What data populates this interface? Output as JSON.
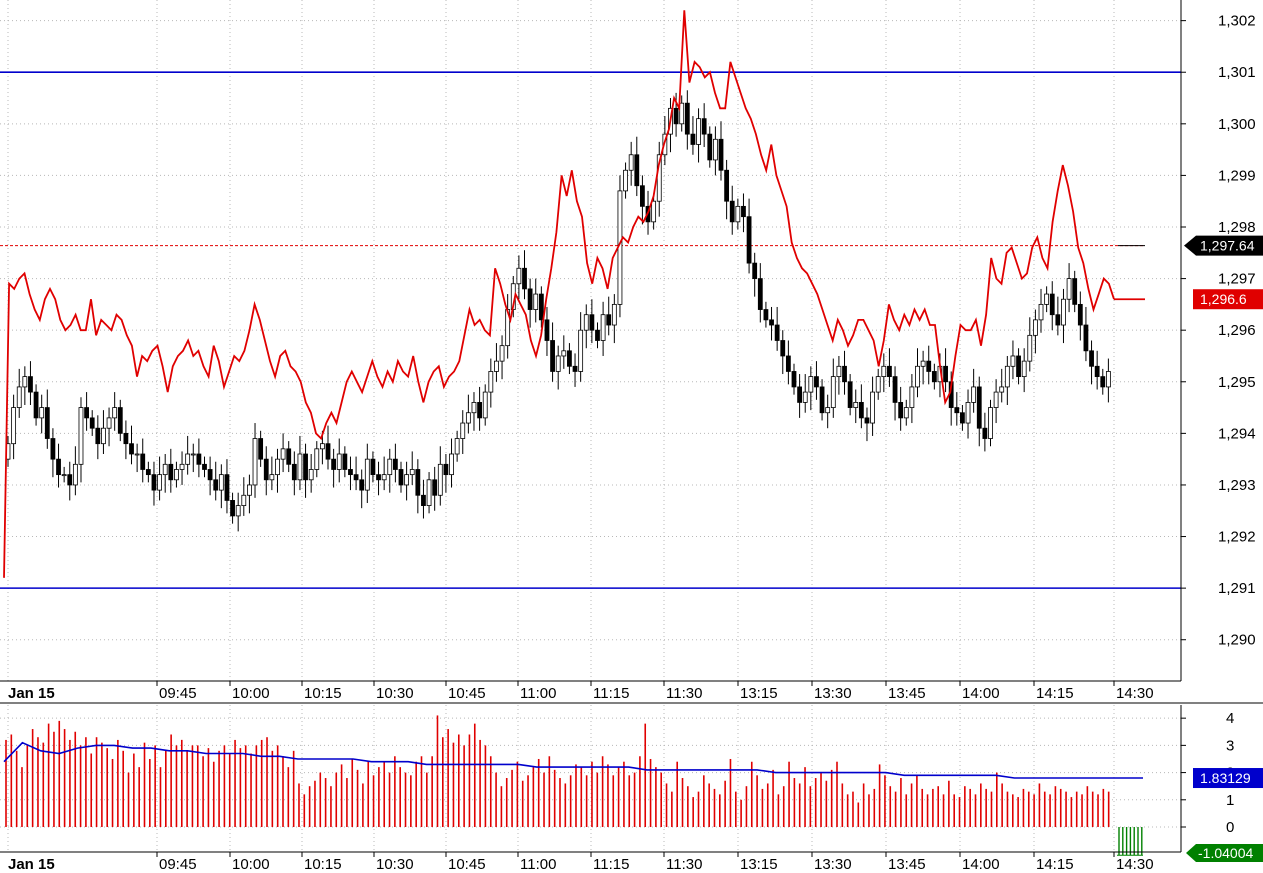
{
  "chart_data": [
    {
      "type": "candlestick",
      "panel": "price",
      "date_label": "Jan 15",
      "time_labels": [
        "09:45",
        "10:00",
        "10:15",
        "10:30",
        "10:45",
        "11:00",
        "11:15",
        "11:30",
        "13:15",
        "13:30",
        "13:45",
        "14:00",
        "14:15",
        "14:30"
      ],
      "y_ticks": [
        "1,290",
        "1,291",
        "1,292",
        "1,293",
        "1,294",
        "1,295",
        "1,296",
        "1,297",
        "1,298",
        "1,299",
        "1,300",
        "1,301",
        "1,302"
      ],
      "ylim": [
        1289.2,
        1302.4
      ],
      "last_price": 1297.64,
      "last_price_label": "1,297.64",
      "series": [
        {
          "name": "",
          "kind": "line",
          "color": "#e00000",
          "last_label": "1,296.6",
          "values": [
            1291.2,
            1296.9,
            1296.8,
            1297.0,
            1297.1,
            1296.7,
            1296.4,
            1296.2,
            1296.6,
            1296.8,
            1296.6,
            1296.2,
            1296.0,
            1296.1,
            1296.3,
            1296.0,
            1296.0,
            1296.6,
            1295.9,
            1296.2,
            1296.1,
            1296.0,
            1296.3,
            1296.2,
            1295.9,
            1295.7,
            1295.1,
            1295.5,
            1295.4,
            1295.6,
            1295.7,
            1295.3,
            1294.8,
            1295.3,
            1295.5,
            1295.6,
            1295.8,
            1295.5,
            1295.6,
            1295.3,
            1295.1,
            1295.7,
            1295.4,
            1294.9,
            1295.2,
            1295.5,
            1295.4,
            1295.6,
            1296.0,
            1296.5,
            1296.2,
            1295.8,
            1295.4,
            1295.1,
            1295.5,
            1295.6,
            1295.3,
            1295.2,
            1295.0,
            1294.6,
            1294.4,
            1294.0,
            1293.9,
            1294.2,
            1294.4,
            1294.2,
            1294.6,
            1295.0,
            1295.2,
            1295.0,
            1294.8,
            1295.1,
            1295.4,
            1295.1,
            1294.9,
            1295.2,
            1295.0,
            1295.4,
            1295.2,
            1295.1,
            1295.5,
            1295.0,
            1294.6,
            1295.0,
            1295.2,
            1295.3,
            1294.9,
            1295.1,
            1295.2,
            1295.4,
            1295.9,
            1296.4,
            1296.1,
            1296.2,
            1296.0,
            1295.9,
            1297.2,
            1296.9,
            1296.5,
            1296.2,
            1296.7,
            1296.5,
            1296.3,
            1295.8,
            1295.5,
            1295.9,
            1296.6,
            1297.2,
            1297.9,
            1299.0,
            1298.6,
            1299.1,
            1298.5,
            1298.2,
            1297.3,
            1296.9,
            1297.4,
            1297.2,
            1296.8,
            1297.4,
            1297.6,
            1297.8,
            1297.7,
            1298.0,
            1298.2,
            1298.1,
            1298.3,
            1298.6,
            1299.2,
            1299.6,
            1299.9,
            1300.5,
            1300.3,
            1302.2,
            1300.8,
            1301.2,
            1301.1,
            1300.9,
            1301.0,
            1300.6,
            1300.3,
            1300.3,
            1301.2,
            1300.9,
            1300.6,
            1300.3,
            1300.1,
            1299.8,
            1299.4,
            1299.1,
            1299.6,
            1299.0,
            1298.7,
            1298.4,
            1297.7,
            1297.4,
            1297.2,
            1297.1,
            1296.9,
            1296.7,
            1296.4,
            1296.1,
            1295.8,
            1296.2,
            1296.0,
            1295.7,
            1295.9,
            1296.2,
            1296.2,
            1296.0,
            1295.8,
            1295.3,
            1295.8,
            1296.5,
            1296.2,
            1296.0,
            1296.3,
            1296.1,
            1296.4,
            1296.2,
            1296.4,
            1296.1,
            1296.1,
            1295.3,
            1294.6,
            1294.8,
            1295.5,
            1296.1,
            1296.0,
            1296.0,
            1296.2,
            1295.7,
            1296.3,
            1297.4,
            1297.0,
            1296.9,
            1297.5,
            1297.6,
            1297.3,
            1297.0,
            1297.1,
            1297.6,
            1297.8,
            1297.4,
            1297.2,
            1298.1,
            1298.7,
            1299.2,
            1298.8,
            1298.3,
            1297.6,
            1297.3,
            1296.8,
            1296.4,
            1296.7,
            1297.0,
            1296.9,
            1296.6
          ]
        },
        {
          "name": "",
          "kind": "ohlc",
          "color": "#000000",
          "close": [
            1293.8,
            1294.5,
            1294.9,
            1295.1,
            1294.8,
            1294.3,
            1294.5,
            1293.9,
            1293.5,
            1293.2,
            1293.2,
            1293.0,
            1293.4,
            1294.5,
            1294.3,
            1294.1,
            1293.8,
            1294.1,
            1294.3,
            1294.5,
            1294.0,
            1293.8,
            1293.6,
            1293.6,
            1293.3,
            1293.2,
            1292.9,
            1293.2,
            1293.4,
            1293.1,
            1293.3,
            1293.4,
            1293.6,
            1293.6,
            1293.4,
            1293.3,
            1293.1,
            1292.9,
            1293.2,
            1292.7,
            1292.4,
            1292.6,
            1292.8,
            1293.0,
            1293.9,
            1293.5,
            1293.1,
            1293.2,
            1293.5,
            1293.7,
            1293.4,
            1293.1,
            1293.6,
            1293.1,
            1293.3,
            1293.7,
            1293.8,
            1293.5,
            1293.3,
            1293.6,
            1293.3,
            1293.2,
            1293.1,
            1292.9,
            1293.5,
            1293.2,
            1293.1,
            1293.2,
            1293.5,
            1293.3,
            1293.0,
            1293.2,
            1293.3,
            1292.8,
            1292.6,
            1293.1,
            1292.8,
            1293.4,
            1293.2,
            1293.6,
            1293.9,
            1294.2,
            1294.4,
            1294.6,
            1294.3,
            1294.8,
            1295.2,
            1295.4,
            1295.7,
            1296.4,
            1296.9,
            1297.2,
            1296.8,
            1296.4,
            1296.7,
            1296.2,
            1295.8,
            1295.2,
            1295.5,
            1295.6,
            1295.3,
            1295.2,
            1296.0,
            1296.3,
            1296.0,
            1295.8,
            1296.3,
            1296.1,
            1296.5,
            1298.7,
            1299.1,
            1299.4,
            1298.8,
            1298.4,
            1298.1,
            1298.5,
            1299.4,
            1299.8,
            1300.3,
            1300.0,
            1300.4,
            1299.8,
            1299.6,
            1300.1,
            1299.8,
            1299.3,
            1299.7,
            1299.1,
            1298.5,
            1298.1,
            1298.4,
            1298.2,
            1297.3,
            1297.0,
            1296.4,
            1296.2,
            1296.1,
            1295.8,
            1295.5,
            1295.2,
            1294.9,
            1294.6,
            1294.8,
            1295.1,
            1294.9,
            1294.4,
            1294.5,
            1295.1,
            1295.3,
            1295.0,
            1294.5,
            1294.6,
            1294.3,
            1294.2,
            1294.8,
            1295.1,
            1295.3,
            1295.1,
            1294.6,
            1294.3,
            1294.5,
            1294.9,
            1295.3,
            1295.4,
            1295.2,
            1295.0,
            1295.3,
            1295.0,
            1294.5,
            1294.4,
            1294.2,
            1294.6,
            1294.9,
            1294.1,
            1293.9,
            1294.5,
            1294.8,
            1294.9,
            1295.3,
            1295.5,
            1295.1,
            1295.4,
            1295.9,
            1296.2,
            1296.5,
            1296.7,
            1296.3,
            1296.1,
            1296.6,
            1297.0,
            1296.5,
            1296.1,
            1295.6,
            1295.3,
            1295.1,
            1294.9,
            1295.2
          ]
        }
      ],
      "h_lines": [
        {
          "value": 1301.0,
          "color": "#0000cc"
        },
        {
          "value": 1291.0,
          "color": "#0000cc"
        }
      ],
      "grid": true
    },
    {
      "type": "bar",
      "panel": "indicator",
      "date_label": "Jan 15",
      "time_labels": [
        "09:45",
        "10:00",
        "10:15",
        "10:30",
        "10:45",
        "11:00",
        "11:15",
        "11:30",
        "13:15",
        "13:30",
        "13:45",
        "14:00",
        "14:15",
        "14:30"
      ],
      "y_ticks": [
        "0",
        "1",
        "2",
        "3",
        "4"
      ],
      "ylim": [
        0,
        4.3
      ],
      "bar_color": "#e00000",
      "values": [
        3.2,
        3.4,
        2.8,
        2.2,
        3.0,
        3.6,
        3.3,
        3.1,
        3.8,
        3.5,
        3.9,
        3.6,
        3.2,
        3.5,
        3.0,
        3.3,
        2.7,
        3.3,
        3.1,
        2.9,
        2.5,
        3.2,
        2.8,
        2.0,
        2.7,
        2.2,
        3.1,
        2.5,
        3.0,
        2.2,
        2.8,
        3.4,
        3.0,
        3.2,
        2.8,
        3.0,
        3.0,
        2.6,
        2.9,
        2.4,
        2.8,
        3.0,
        2.7,
        3.2,
        2.9,
        3.0,
        2.7,
        3.0,
        3.2,
        3.3,
        2.8,
        3.0,
        2.6,
        2.2,
        2.8,
        1.6,
        1.2,
        1.5,
        1.7,
        2.0,
        1.8,
        1.5,
        2.0,
        2.3,
        1.8,
        2.5,
        2.1,
        1.6,
        2.4,
        1.9,
        2.2,
        2.4,
        2.0,
        2.6,
        2.2,
        2.0,
        1.9,
        2.4,
        2.6,
        2.0,
        2.6,
        4.1,
        3.3,
        3.6,
        3.1,
        3.4,
        3.0,
        3.4,
        3.8,
        3.2,
        3.0,
        2.6,
        2.0,
        1.5,
        1.8,
        2.1,
        2.4,
        1.7,
        1.9,
        2.2,
        2.5,
        2.0,
        2.6,
        2.1,
        1.8,
        1.6,
        1.9,
        2.3,
        2.2,
        1.9,
        2.4,
        2.0,
        2.6,
        2.3,
        1.9,
        2.2,
        2.4,
        1.9,
        2.0,
        2.6,
        3.8,
        2.5,
        2.2,
        2.0,
        1.6,
        1.3,
        2.4,
        1.8,
        1.5,
        1.1,
        1.3,
        1.9,
        1.6,
        1.4,
        1.2,
        1.7,
        2.5,
        1.3,
        1.0,
        1.5,
        2.4,
        1.9,
        1.4,
        1.6,
        2.1,
        1.2,
        1.5,
        2.4,
        1.8,
        1.6,
        2.2,
        1.5,
        1.8,
        2.0,
        1.7,
        2.1,
        2.4,
        1.6,
        1.2,
        1.3,
        0.9,
        1.6,
        1.2,
        1.4,
        2.3,
        1.9,
        1.5,
        1.3,
        1.8,
        1.2,
        1.6,
        1.9,
        1.4,
        1.2,
        1.4,
        1.5,
        1.2,
        1.7,
        1.2,
        1.1,
        1.5,
        1.4,
        1.2,
        1.6,
        1.4,
        1.3,
        2.0,
        1.6,
        1.3,
        1.2,
        1.1,
        1.4,
        1.3,
        1.2,
        1.6,
        1.3,
        1.2,
        1.5,
        1.4,
        1.3,
        1.1,
        1.3,
        1.2,
        1.5,
        1.3,
        1.2,
        1.4,
        1.3
      ],
      "avg_series": {
        "color": "#0000cc",
        "values": [
          2.4,
          3.1,
          2.8,
          2.7,
          2.9,
          3.0,
          3.0,
          2.9,
          2.9,
          2.8,
          2.8,
          2.7,
          2.7,
          2.7,
          2.6,
          2.6,
          2.5,
          2.5,
          2.5,
          2.5,
          2.4,
          2.4,
          2.4,
          2.3,
          2.3,
          2.3,
          2.3,
          2.3,
          2.3,
          2.2,
          2.2,
          2.2,
          2.2,
          2.2,
          2.2,
          2.1,
          2.1,
          2.1,
          2.1,
          2.1,
          2.1,
          2.1,
          2.0,
          2.0,
          2.0,
          2.0,
          2.0,
          2.0,
          2.0,
          1.9,
          1.9,
          1.9,
          1.9,
          1.9,
          1.9,
          1.8,
          1.8,
          1.8,
          1.8,
          1.8,
          1.8,
          1.8,
          1.8
        ]
      },
      "last_value_label": "1.83129",
      "negative_value": -1.04004,
      "negative_value_label": "-1.04004",
      "negative_color": "#008000",
      "grid": true
    }
  ]
}
